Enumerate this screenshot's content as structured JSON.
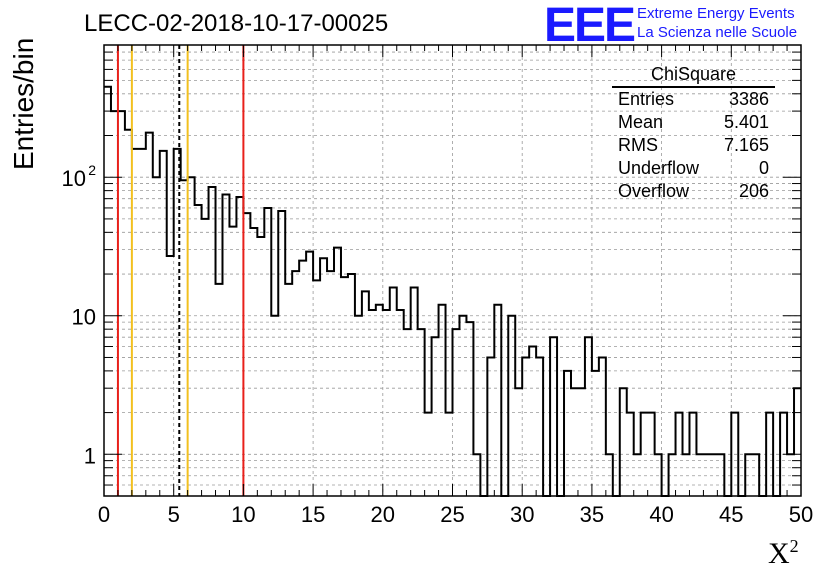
{
  "chart_data": {
    "type": "bar",
    "title": "LECC-02-2018-10-17-00025",
    "xlabel": "X",
    "xlabel_sup": "2",
    "ylabel": "Entries/bin",
    "xlim": [
      0,
      50
    ],
    "ylim": [
      0.5,
      900
    ],
    "yscale": "log",
    "grid": true,
    "bin_width": 0.5,
    "x_ticks": [
      "0",
      "5",
      "10",
      "15",
      "20",
      "25",
      "30",
      "35",
      "40",
      "45",
      "50"
    ],
    "y_ticks": [
      {
        "value": 1,
        "label": "1"
      },
      {
        "value": 10,
        "label": "10"
      },
      {
        "value": 100,
        "label": "10",
        "sup": "2"
      }
    ],
    "values": [
      450,
      300,
      300,
      220,
      160,
      160,
      210,
      100,
      155,
      27,
      160,
      95,
      100,
      63,
      50,
      85,
      17,
      75,
      44,
      72,
      55,
      43,
      37,
      60,
      10,
      57,
      17,
      21,
      25,
      29,
      18,
      26,
      21,
      31,
      19,
      20,
      10,
      15,
      11,
      12,
      11,
      16,
      11,
      8,
      16,
      8,
      2,
      7,
      12,
      2,
      8,
      10,
      9,
      1,
      0.3,
      5,
      12,
      0.3,
      10,
      3,
      5,
      6,
      5,
      0.3,
      7,
      0.3,
      4,
      3,
      3,
      7,
      4,
      5,
      1,
      0.3,
      3,
      2,
      1,
      2,
      2,
      1,
      0.3,
      1,
      2,
      1,
      2,
      1,
      1,
      1,
      1,
      0.3,
      2,
      0.3,
      1,
      1,
      0.3,
      2,
      0.3,
      2,
      1,
      3
    ],
    "vlines": [
      {
        "x": 1,
        "color": "#e8201a",
        "style": "solid"
      },
      {
        "x": 2,
        "color": "#f2c01f",
        "style": "solid"
      },
      {
        "x": 5.4,
        "color": "#000000",
        "style": "dashed"
      },
      {
        "x": 6,
        "color": "#f2c01f",
        "style": "solid"
      },
      {
        "x": 10,
        "color": "#e8201a",
        "style": "solid"
      }
    ]
  },
  "logo": {
    "mark": "EEE",
    "line1": "Extreme Energy Events",
    "line2": "La Scienza nelle Scuole"
  },
  "stats": {
    "name": "ChiSquare",
    "rows": [
      {
        "label": "Entries",
        "value": "3386"
      },
      {
        "label": "Mean",
        "value": "5.401"
      },
      {
        "label": "RMS",
        "value": "7.165"
      },
      {
        "label": "Underflow",
        "value": "0"
      },
      {
        "label": "Overflow",
        "value": "206"
      }
    ]
  }
}
